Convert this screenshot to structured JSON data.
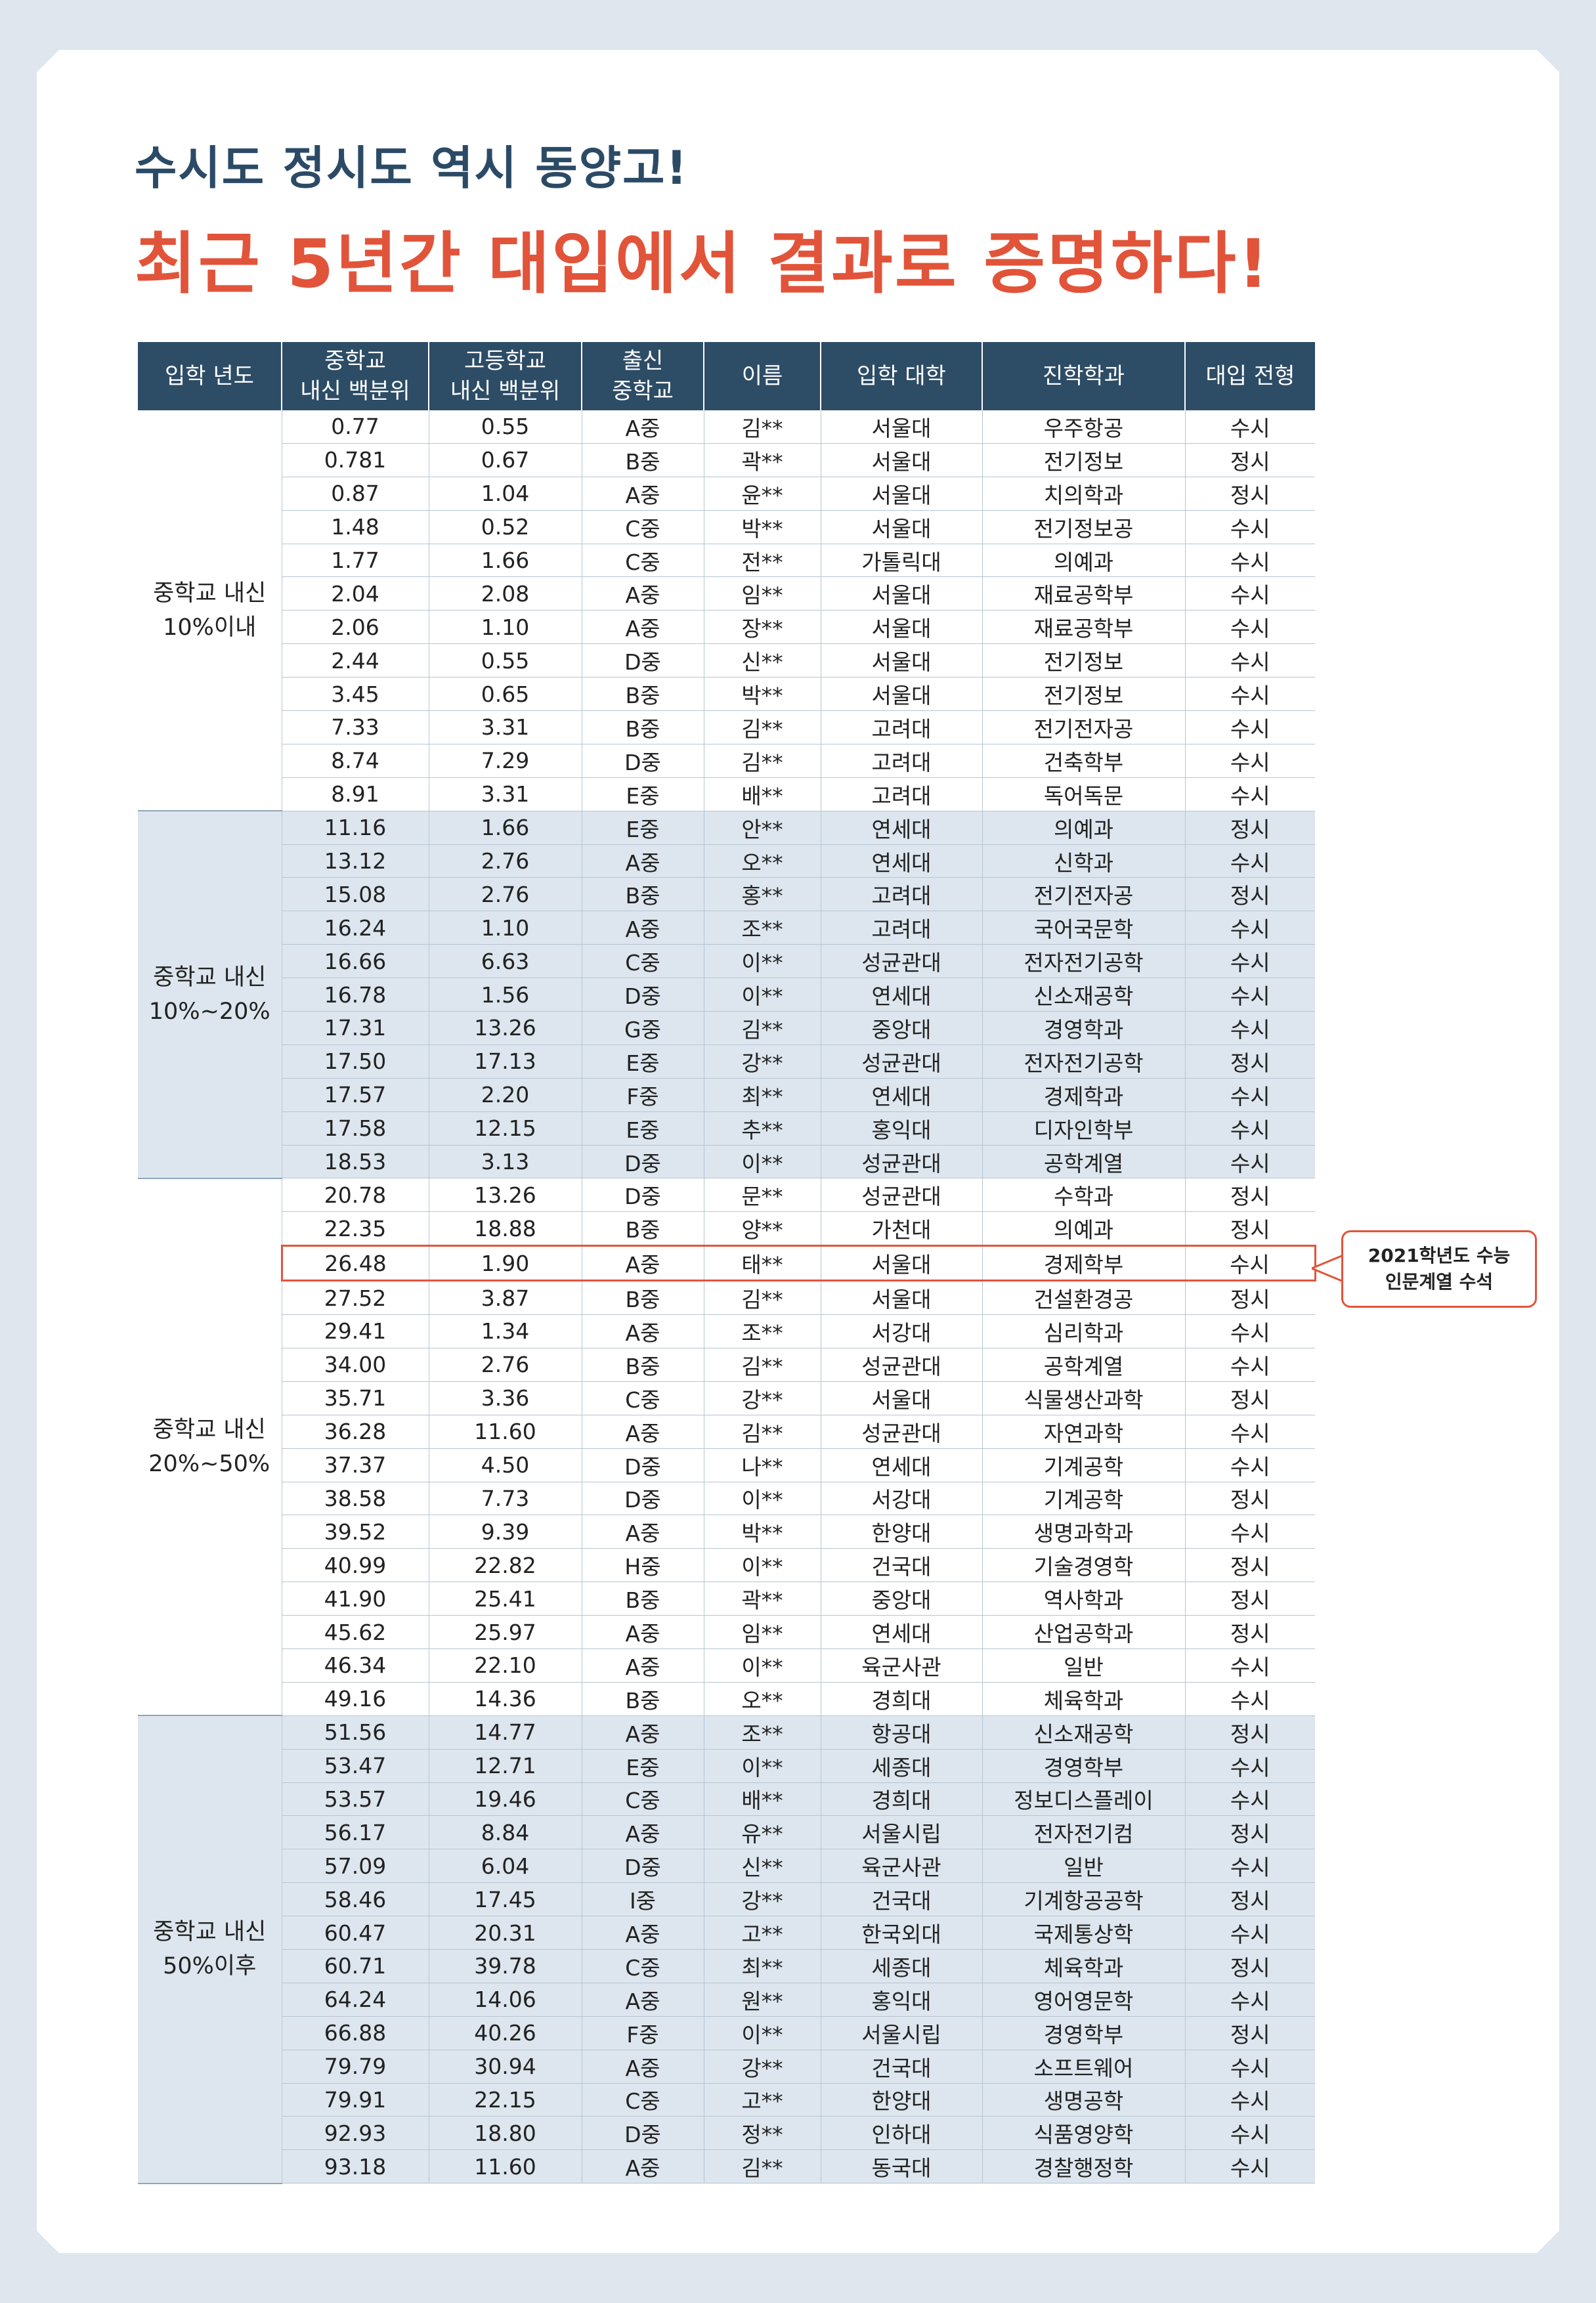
{
  "header": {
    "subtitle": "수시도 정시도 역시 동양고!",
    "title": "최근 5년간 대입에서 결과로 증명하다!"
  },
  "table": {
    "headers": [
      {
        "line1": "입학 년도",
        "line2": ""
      },
      {
        "line1": "중학교",
        "line2": "내신 백분위"
      },
      {
        "line1": "고등학교",
        "line2": "내신 백분위"
      },
      {
        "line1": "출신",
        "line2": "중학교"
      },
      {
        "line1": "이름",
        "line2": ""
      },
      {
        "line1": "입학 대학",
        "line2": ""
      },
      {
        "line1": "진학학과",
        "line2": ""
      },
      {
        "line1": "대입 전형",
        "line2": ""
      }
    ],
    "groups": [
      {
        "line1": "중학교 내신",
        "line2": "10%이내",
        "rows": [
          [
            "0.77",
            "0.55",
            "A중",
            "김**",
            "서울대",
            "우주항공",
            "수시"
          ],
          [
            "0.781",
            "0.67",
            "B중",
            "곽**",
            "서울대",
            "전기정보",
            "정시"
          ],
          [
            "0.87",
            "1.04",
            "A중",
            "윤**",
            "서울대",
            "치의학과",
            "정시"
          ],
          [
            "1.48",
            "0.52",
            "C중",
            "박**",
            "서울대",
            "전기정보공",
            "수시"
          ],
          [
            "1.77",
            "1.66",
            "C중",
            "전**",
            "가톨릭대",
            "의예과",
            "수시"
          ],
          [
            "2.04",
            "2.08",
            "A중",
            "임**",
            "서울대",
            "재료공학부",
            "수시"
          ],
          [
            "2.06",
            "1.10",
            "A중",
            "장**",
            "서울대",
            "재료공학부",
            "수시"
          ],
          [
            "2.44",
            "0.55",
            "D중",
            "신**",
            "서울대",
            "전기정보",
            "수시"
          ],
          [
            "3.45",
            "0.65",
            "B중",
            "박**",
            "서울대",
            "전기정보",
            "수시"
          ],
          [
            "7.33",
            "3.31",
            "B중",
            "김**",
            "고려대",
            "전기전자공",
            "수시"
          ],
          [
            "8.74",
            "7.29",
            "D중",
            "김**",
            "고려대",
            "건축학부",
            "수시"
          ],
          [
            "8.91",
            "3.31",
            "E중",
            "배**",
            "고려대",
            "독어독문",
            "수시"
          ]
        ]
      },
      {
        "line1": "중학교 내신",
        "line2": "10%~20%",
        "rows": [
          [
            "11.16",
            "1.66",
            "E중",
            "안**",
            "연세대",
            "의예과",
            "정시"
          ],
          [
            "13.12",
            "2.76",
            "A중",
            "오**",
            "연세대",
            "신학과",
            "수시"
          ],
          [
            "15.08",
            "2.76",
            "B중",
            "홍**",
            "고려대",
            "전기전자공",
            "정시"
          ],
          [
            "16.24",
            "1.10",
            "A중",
            "조**",
            "고려대",
            "국어국문학",
            "수시"
          ],
          [
            "16.66",
            "6.63",
            "C중",
            "이**",
            "성균관대",
            "전자전기공학",
            "수시"
          ],
          [
            "16.78",
            "1.56",
            "D중",
            "이**",
            "연세대",
            "신소재공학",
            "수시"
          ],
          [
            "17.31",
            "13.26",
            "G중",
            "김**",
            "중앙대",
            "경영학과",
            "수시"
          ],
          [
            "17.50",
            "17.13",
            "E중",
            "강**",
            "성균관대",
            "전자전기공학",
            "정시"
          ],
          [
            "17.57",
            "2.20",
            "F중",
            "최**",
            "연세대",
            "경제학과",
            "수시"
          ],
          [
            "17.58",
            "12.15",
            "E중",
            "추**",
            "홍익대",
            "디자인학부",
            "수시"
          ],
          [
            "18.53",
            "3.13",
            "D중",
            "이**",
            "성균관대",
            "공학계열",
            "수시"
          ]
        ]
      },
      {
        "line1": "중학교 내신",
        "line2": "20%~50%",
        "rows": [
          [
            "20.78",
            "13.26",
            "D중",
            "문**",
            "성균관대",
            "수학과",
            "정시"
          ],
          [
            "22.35",
            "18.88",
            "B중",
            "양**",
            "가천대",
            "의예과",
            "정시"
          ],
          [
            "26.48",
            "1.90",
            "A중",
            "태**",
            "서울대",
            "경제학부",
            "수시"
          ],
          [
            "27.52",
            "3.87",
            "B중",
            "김**",
            "서울대",
            "건설환경공",
            "정시"
          ],
          [
            "29.41",
            "1.34",
            "A중",
            "조**",
            "서강대",
            "심리학과",
            "수시"
          ],
          [
            "34.00",
            "2.76",
            "B중",
            "김**",
            "성균관대",
            "공학계열",
            "수시"
          ],
          [
            "35.71",
            "3.36",
            "C중",
            "강**",
            "서울대",
            "식물생산과학",
            "정시"
          ],
          [
            "36.28",
            "11.60",
            "A중",
            "김**",
            "성균관대",
            "자연과학",
            "수시"
          ],
          [
            "37.37",
            "4.50",
            "D중",
            "나**",
            "연세대",
            "기계공학",
            "수시"
          ],
          [
            "38.58",
            "7.73",
            "D중",
            "이**",
            "서강대",
            "기계공학",
            "정시"
          ],
          [
            "39.52",
            "9.39",
            "A중",
            "박**",
            "한양대",
            "생명과학과",
            "수시"
          ],
          [
            "40.99",
            "22.82",
            "H중",
            "이**",
            "건국대",
            "기술경영학",
            "정시"
          ],
          [
            "41.90",
            "25.41",
            "B중",
            "곽**",
            "중앙대",
            "역사학과",
            "정시"
          ],
          [
            "45.62",
            "25.97",
            "A중",
            "임**",
            "연세대",
            "산업공학과",
            "정시"
          ],
          [
            "46.34",
            "22.10",
            "A중",
            "이**",
            "육군사관",
            "일반",
            "수시"
          ],
          [
            "49.16",
            "14.36",
            "B중",
            "오**",
            "경희대",
            "체육학과",
            "수시"
          ]
        ]
      },
      {
        "line1": "중학교 내신",
        "line2": "50%이후",
        "rows": [
          [
            "51.56",
            "14.77",
            "A중",
            "조**",
            "항공대",
            "신소재공학",
            "정시"
          ],
          [
            "53.47",
            "12.71",
            "E중",
            "이**",
            "세종대",
            "경영학부",
            "수시"
          ],
          [
            "53.57",
            "19.46",
            "C중",
            "배**",
            "경희대",
            "정보디스플레이",
            "수시"
          ],
          [
            "56.17",
            "8.84",
            "A중",
            "유**",
            "서울시립",
            "전자전기컴",
            "정시"
          ],
          [
            "57.09",
            "6.04",
            "D중",
            "신**",
            "육군사관",
            "일반",
            "수시"
          ],
          [
            "58.46",
            "17.45",
            "I중",
            "강**",
            "건국대",
            "기계항공공학",
            "정시"
          ],
          [
            "60.47",
            "20.31",
            "A중",
            "고**",
            "한국외대",
            "국제통상학",
            "수시"
          ],
          [
            "60.71",
            "39.78",
            "C중",
            "최**",
            "세종대",
            "체육학과",
            "정시"
          ],
          [
            "64.24",
            "14.06",
            "A중",
            "원**",
            "홍익대",
            "영어영문학",
            "수시"
          ],
          [
            "66.88",
            "40.26",
            "F중",
            "이**",
            "서울시립",
            "경영학부",
            "정시"
          ],
          [
            "79.79",
            "30.94",
            "A중",
            "강**",
            "건국대",
            "소프트웨어",
            "수시"
          ],
          [
            "79.91",
            "22.15",
            "C중",
            "고**",
            "한양대",
            "생명공학",
            "수시"
          ],
          [
            "92.93",
            "18.80",
            "D중",
            "정**",
            "인하대",
            "식품영양학",
            "수시"
          ],
          [
            "93.18",
            "11.60",
            "A중",
            "김**",
            "동국대",
            "경찰행정학",
            "수시"
          ]
        ]
      }
    ]
  },
  "callout": {
    "line1": "2021학년도 수능",
    "line2": "인문계열 수석"
  },
  "colors": {
    "header_bg": "#2d4c66",
    "accent": "#e1543a",
    "band_blue": "#dde6ee",
    "page_bg": "#dfe6ee"
  }
}
